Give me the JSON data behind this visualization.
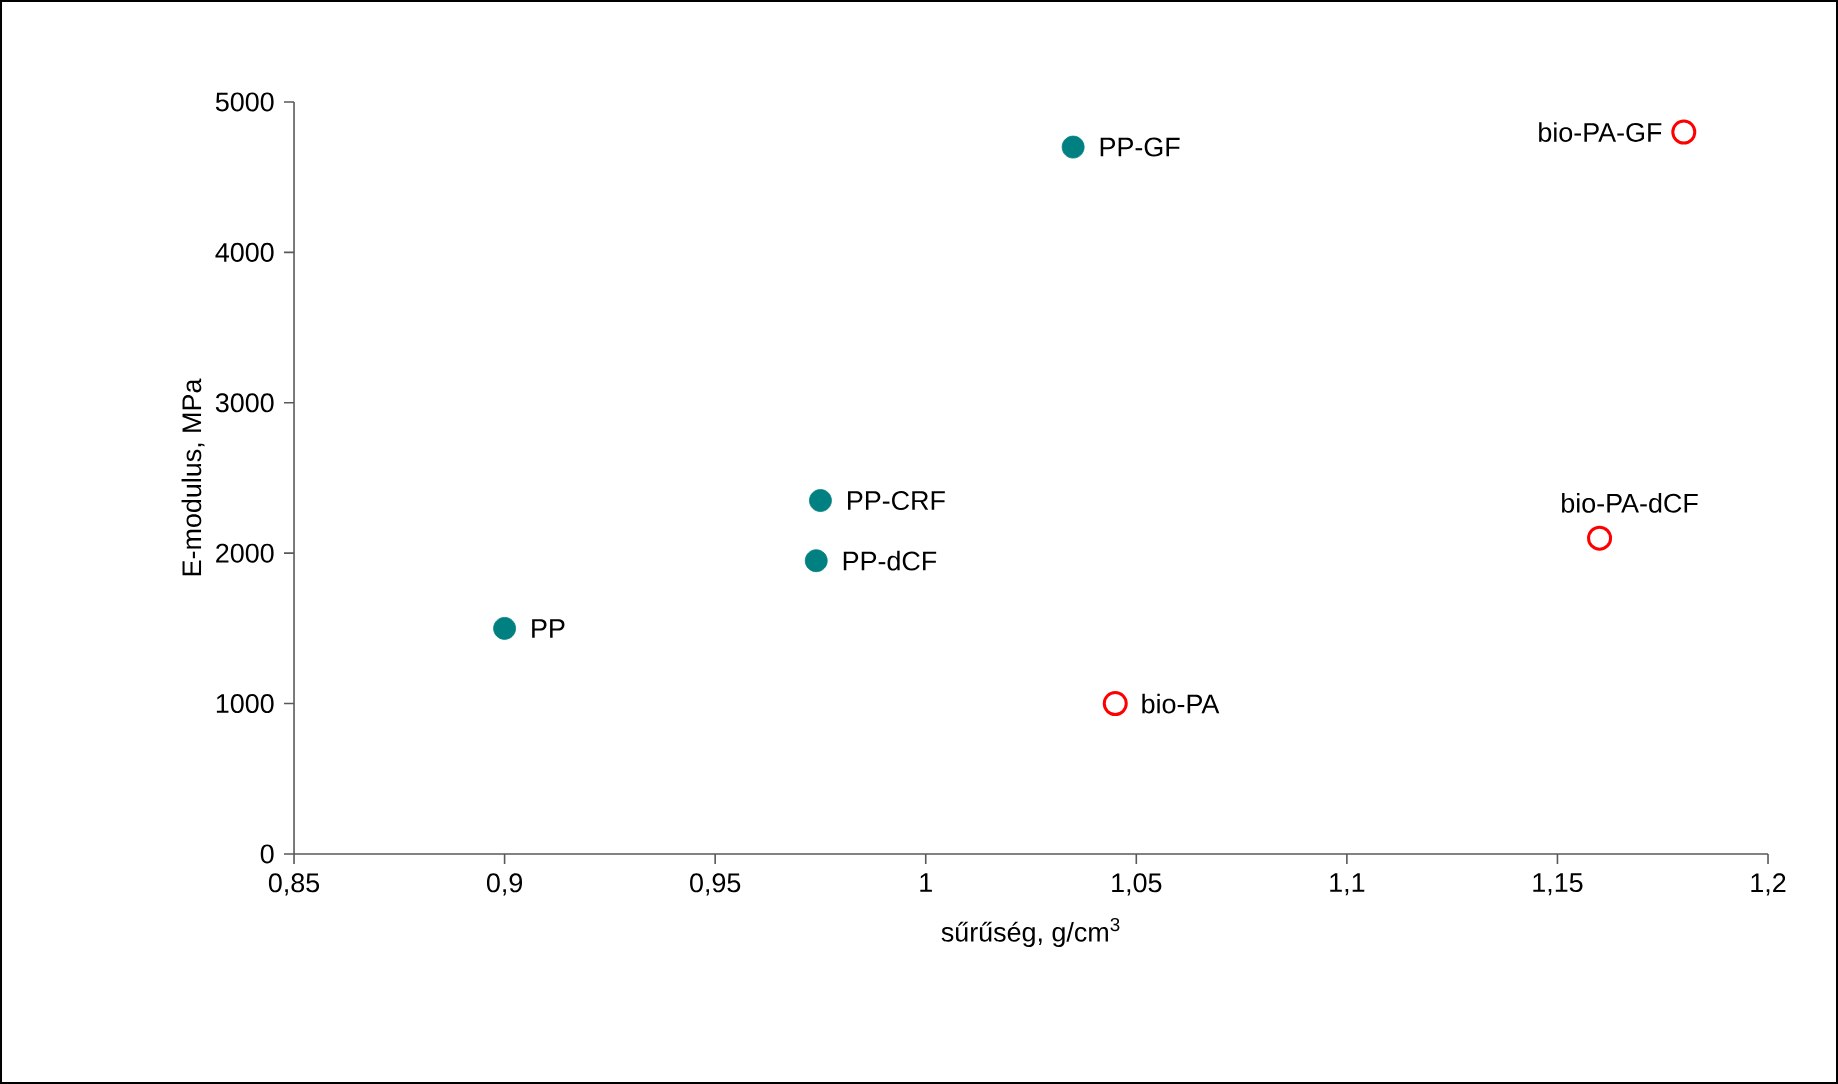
{
  "chart_data": {
    "type": "scatter",
    "xlabel": "sűrűség, g/cm$^{3}$",
    "ylabel": "E-modulus, MPa",
    "xlim": [
      0.85,
      1.2
    ],
    "xticks": [
      {
        "value": 0.85,
        "label": "0,85"
      },
      {
        "value": 0.9,
        "label": "0,9"
      },
      {
        "value": 0.95,
        "label": "0,95"
      },
      1,
      {
        "value": 1.05,
        "label": "1,05"
      },
      {
        "value": 1.1,
        "label": "1,1"
      },
      {
        "value": 1.15,
        "label": "1,15"
      },
      {
        "value": 1.2,
        "label": "1,2"
      }
    ],
    "ylim": [
      0,
      5000
    ],
    "yticks": [
      0,
      1000,
      2000,
      3000,
      4000,
      5000
    ],
    "grid": false,
    "series": [
      {
        "color": "#008080",
        "marker": "circle",
        "x": [
          0.9,
          0.975,
          0.974,
          1.035
        ],
        "values": [
          1500,
          2350,
          1950,
          4700
        ]
      },
      {
        "color": "#ff0000",
        "marker": "circle-open",
        "x": [
          1.045,
          1.16,
          1.18
        ],
        "values": [
          1000,
          2100,
          4800
        ]
      }
    ],
    "annotations": [
      {
        "text": "PP",
        "x": 0.9,
        "y": 1500
      },
      {
        "text": "PP-CRF",
        "x": 0.975,
        "y": 2350
      },
      {
        "text": "PP-dCF",
        "x": 0.974,
        "y": 1950
      },
      {
        "text": "PP-GF",
        "x": 1.035,
        "y": 4700
      },
      {
        "text": "bio-PA",
        "x": 1.045,
        "y": 1000
      },
      {
        "text": "bio-PA-dCF",
        "x": 1.16,
        "y": 2100
      },
      {
        "text": "bio-PA-GF",
        "x": 1.18,
        "y": 4800
      }
    ]
  }
}
